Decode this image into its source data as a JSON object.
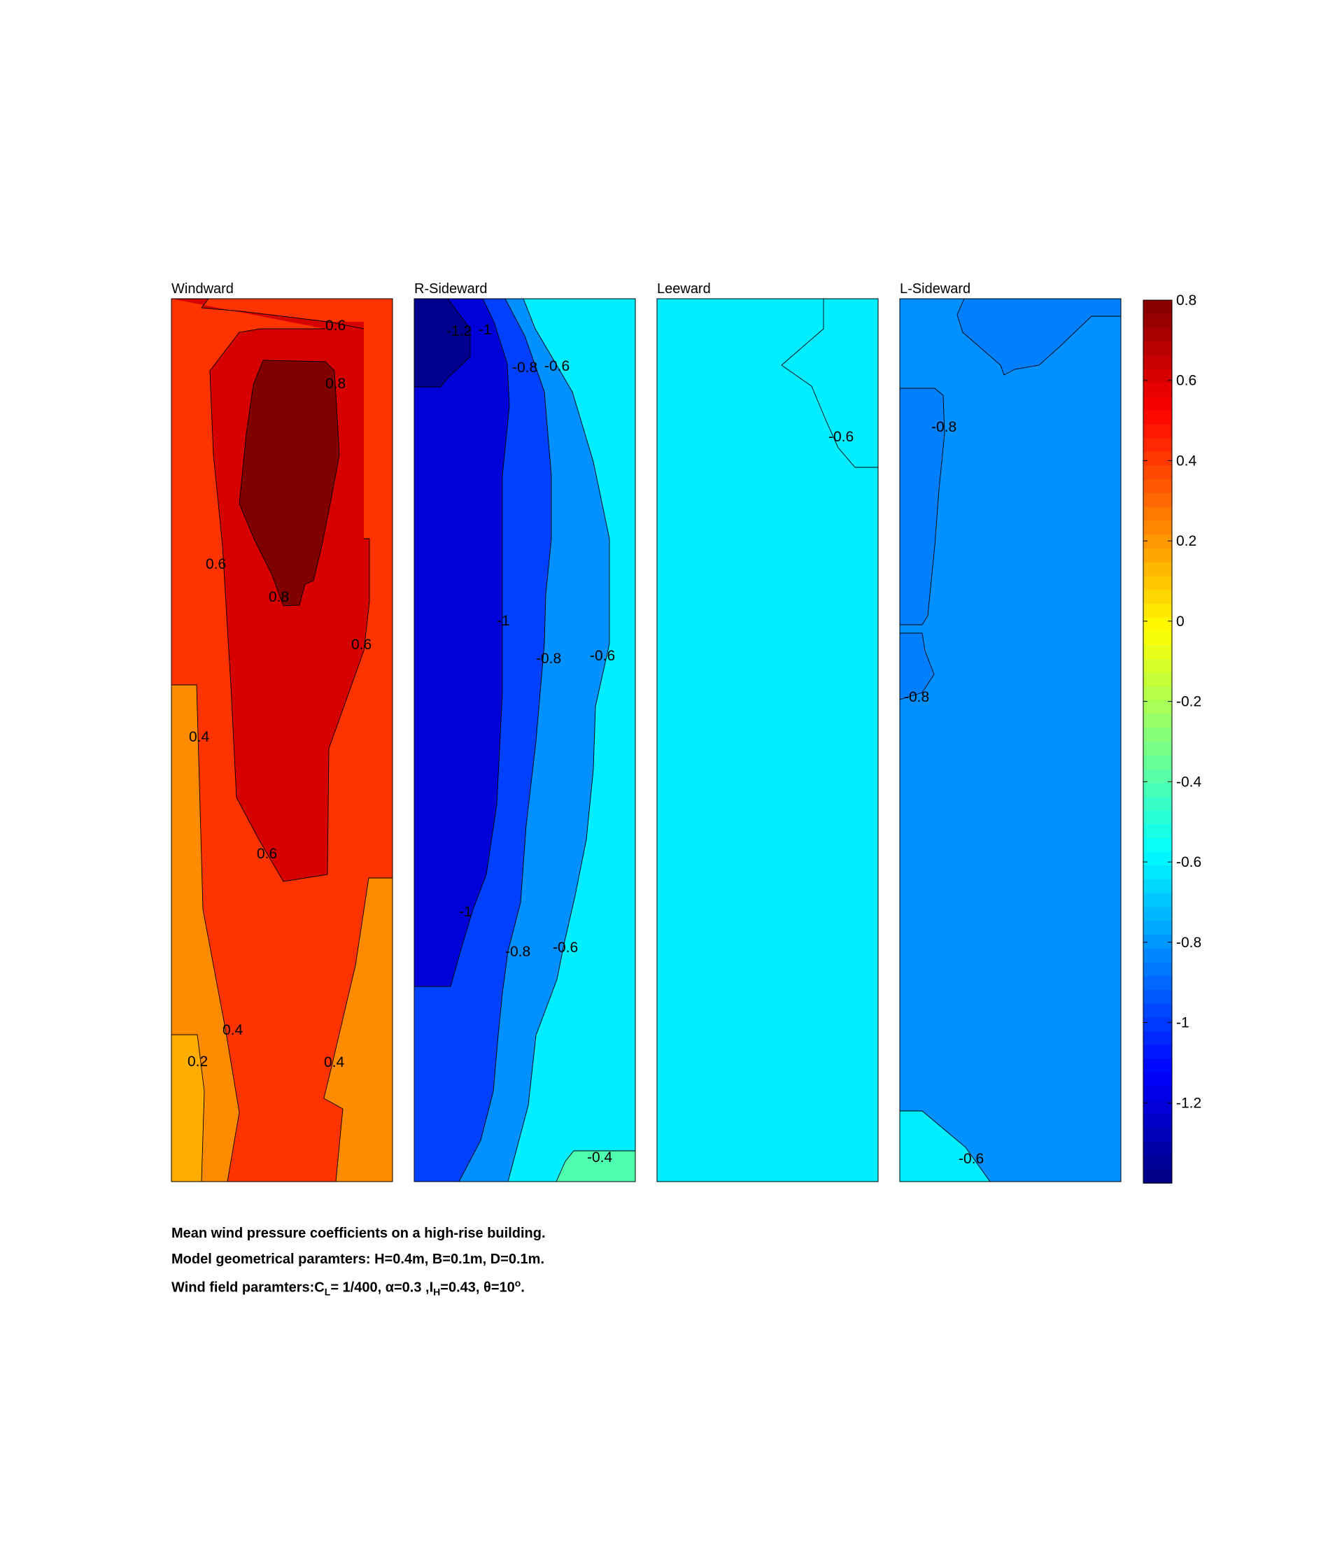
{
  "chart_data": {
    "type": "heatmap",
    "subtype": "filled contour maps of building faces",
    "colormap": "jet",
    "clim": [
      -1.4,
      0.8
    ],
    "colorbar": {
      "placement": "right",
      "ticks": [
        "0.8",
        "0.6",
        "0.4",
        "0.2",
        "0",
        "-0.2",
        "-0.4",
        "-0.6",
        "-0.8",
        "-1",
        "-1.2"
      ]
    },
    "panels": [
      {
        "title": "Windward",
        "contour_labels": [
          "0.6",
          "0.8",
          "0.6",
          "0.8",
          "0.6",
          "0.4",
          "0.6",
          "0.4",
          "0.2",
          "0.4"
        ],
        "regions": [
          {
            "level": 0.4,
            "color": "#ff3300"
          },
          {
            "level": 0.2,
            "color": "#ff8c00"
          },
          {
            "level": 0.1,
            "color": "#ffae00"
          },
          {
            "level": 0.6,
            "color": "#d60000"
          },
          {
            "level": 0.8,
            "color": "#800000"
          }
        ]
      },
      {
        "title": "R-Sideward",
        "contour_labels": [
          "-1.2",
          "-1",
          "-0.8",
          "-0.6",
          "-1",
          "-0.8",
          "-0.6",
          "-1",
          "-0.8",
          "-0.6",
          "-0.4"
        ],
        "regions": [
          {
            "level": -0.6,
            "color": "#00eeff"
          },
          {
            "level": -0.8,
            "color": "#0090ff"
          },
          {
            "level": -1.0,
            "color": "#0040ff"
          },
          {
            "level": -1.2,
            "color": "#0000d8"
          },
          {
            "level": -1.3,
            "color": "#00008f"
          },
          {
            "level": -0.4,
            "color": "#4effb0"
          }
        ]
      },
      {
        "title": "Leeward",
        "contour_labels": [
          "-0.6"
        ],
        "regions": [
          {
            "level": -0.6,
            "color": "#00eeff"
          }
        ]
      },
      {
        "title": "L-Sideward",
        "contour_labels": [
          "-0.8",
          "-0.8",
          "-0.6"
        ],
        "regions": [
          {
            "level": -0.8,
            "color": "#0090ff"
          },
          {
            "level": -0.9,
            "color": "#0080ff"
          },
          {
            "level": -0.6,
            "color": "#00eeff"
          }
        ]
      }
    ]
  },
  "caption": {
    "line1": "Mean wind pressure coefficients on a high-rise building.",
    "line2": "Model geometrical paramters: H=0.4m, B=0.1m, D=0.1m.",
    "line3_prefix": "Wind field paramters:C",
    "line3_sub1": "L",
    "line3_mid": "= 1/400, α=0.3 ,I",
    "line3_sub2": "H",
    "line3_end": "=0.43, θ=10",
    "line3_sup": "o",
    "line3_tail": "."
  }
}
